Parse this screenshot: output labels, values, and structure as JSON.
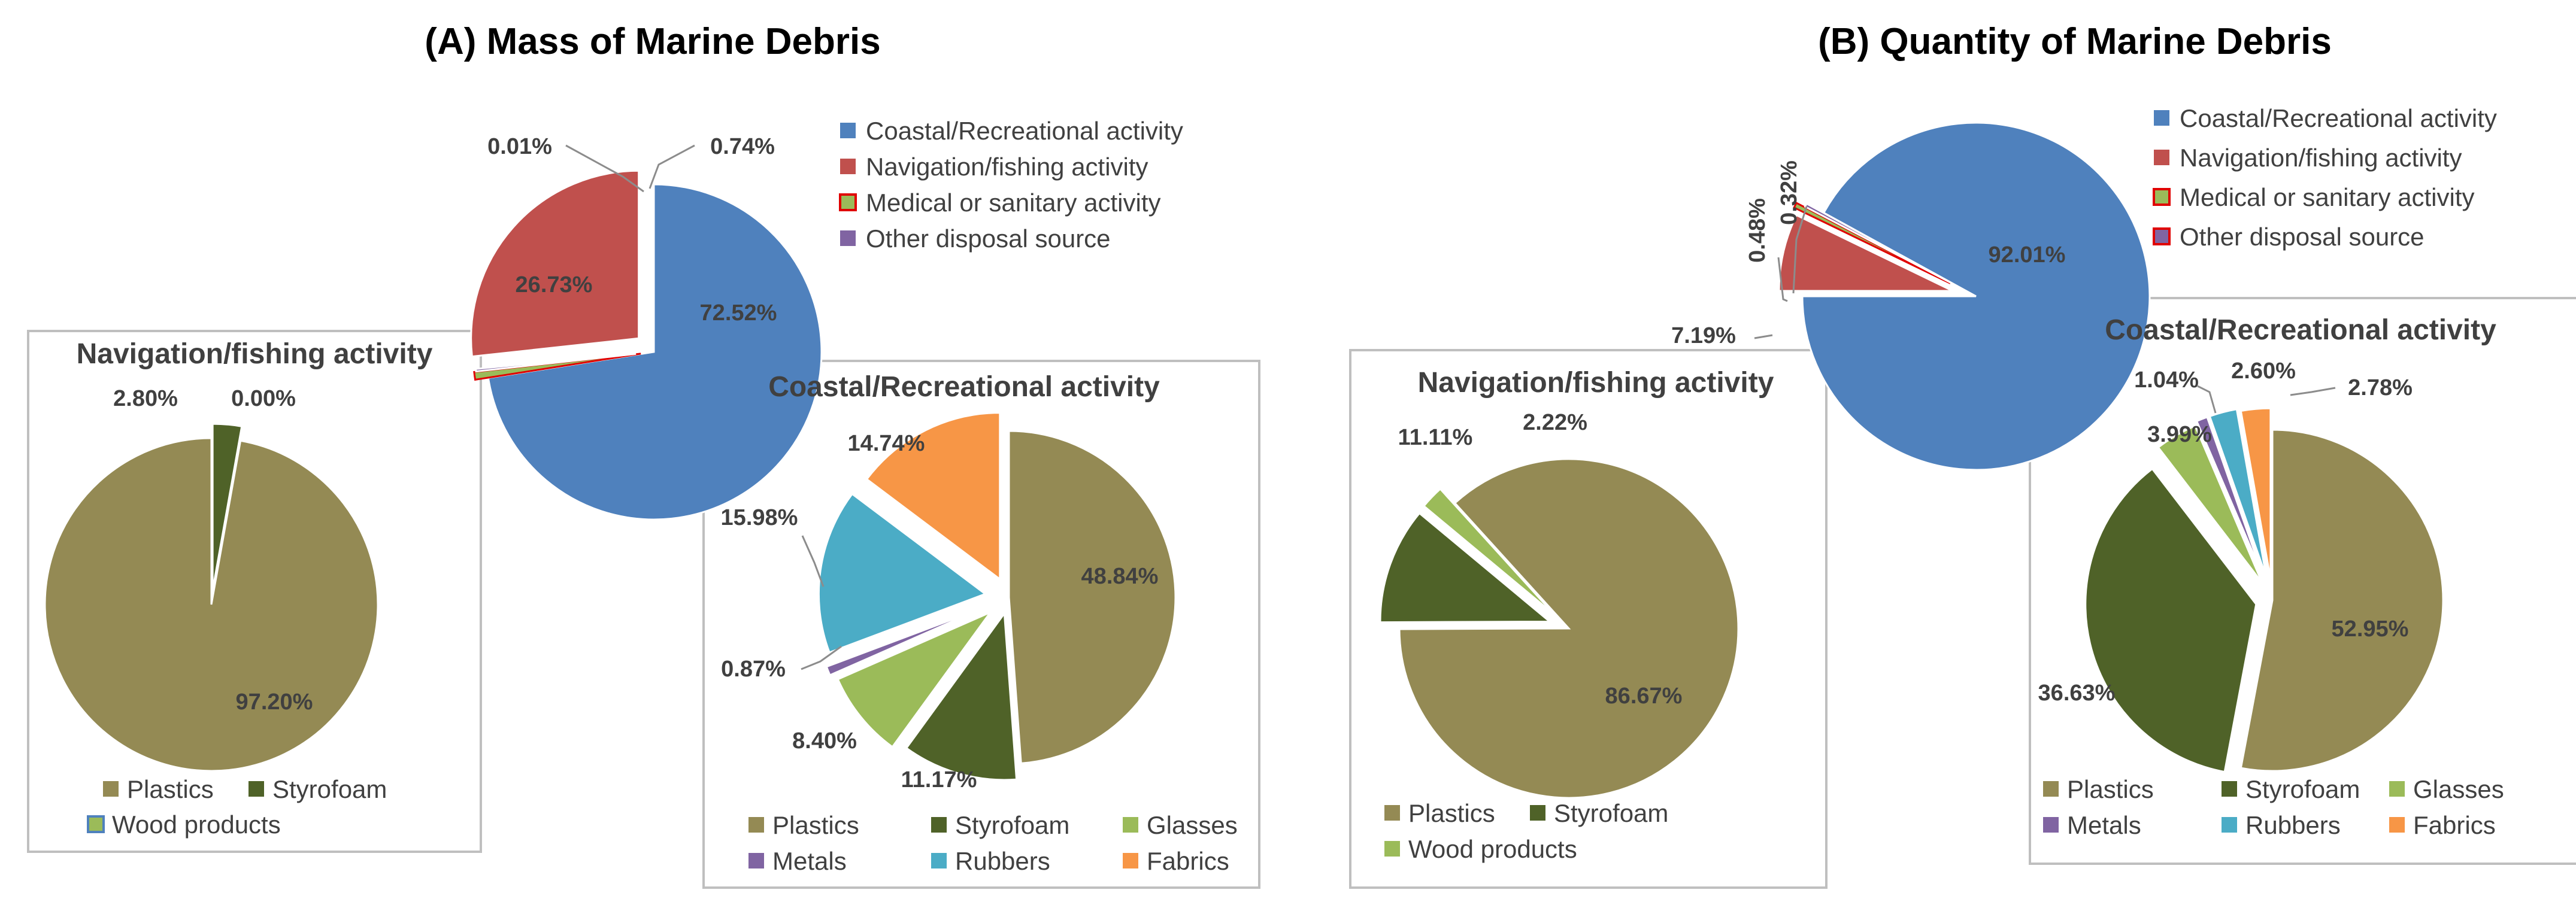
{
  "colors": {
    "coastal": "#4f81bd",
    "navigation": "#c0504d",
    "medical": "#9bbb59",
    "medical_border": "#e00000",
    "other": "#8064a2",
    "plastics": "#948a54",
    "styrofoam": "#4f6228",
    "glasses": "#9bbb59",
    "metals": "#8064a2",
    "rubbers": "#4bacc6",
    "fabrics": "#f79646",
    "wood": "#9bbb59",
    "wood_border": "#4f81bd"
  },
  "chart_data": [
    {
      "type": "pie",
      "panel": "A",
      "title": "(A) Mass of Marine Debris",
      "categories": [
        "Coastal/Recreational activity",
        "Navigation/fishing activity",
        "Medical or sanitary activity",
        "Other disposal source"
      ],
      "values": [
        72.52,
        26.73,
        0.74,
        0.01
      ],
      "labels": [
        "72.52%",
        "26.73%",
        "0.74%",
        "0.01%"
      ],
      "legend_position": "right",
      "sub_charts": [
        {
          "type": "pie",
          "title": "Navigation/fishing activity",
          "categories": [
            "Plastics",
            "Styrofoam",
            "Wood products"
          ],
          "values": [
            97.2,
            2.8,
            0.0
          ],
          "labels": [
            "97.20%",
            "2.80%",
            "0.00%"
          ],
          "legend_position": "bottom"
        },
        {
          "type": "pie",
          "title": "Coastal/Recreational activity",
          "categories": [
            "Plastics",
            "Styrofoam",
            "Glasses",
            "Metals",
            "Rubbers",
            "Fabrics"
          ],
          "values": [
            48.84,
            11.17,
            8.4,
            0.87,
            15.98,
            14.74
          ],
          "labels": [
            "48.84%",
            "11.17%",
            "8.40%",
            "0.87%",
            "15.98%",
            "14.74%"
          ],
          "legend_position": "bottom"
        }
      ]
    },
    {
      "type": "pie",
      "panel": "B",
      "title": "(B) Quantity of Marine Debris",
      "categories": [
        "Coastal/Recreational activity",
        "Navigation/fishing activity",
        "Medical or sanitary activity",
        "Other disposal source"
      ],
      "values": [
        92.01,
        7.19,
        0.48,
        0.32
      ],
      "labels": [
        "92.01%",
        "7.19%",
        "0.48%",
        "0.32%"
      ],
      "legend_position": "right",
      "sub_charts": [
        {
          "type": "pie",
          "title": "Navigation/fishing activity",
          "categories": [
            "Plastics",
            "Styrofoam",
            "Wood products"
          ],
          "values": [
            86.67,
            11.11,
            2.22
          ],
          "labels": [
            "86.67%",
            "11.11%",
            "2.22%"
          ],
          "legend_position": "bottom"
        },
        {
          "type": "pie",
          "title": "Coastal/Recreational activity",
          "categories": [
            "Plastics",
            "Styrofoam",
            "Glasses",
            "Metals",
            "Rubbers",
            "Fabrics"
          ],
          "values": [
            52.95,
            36.63,
            3.99,
            1.04,
            2.6,
            2.78
          ],
          "labels": [
            "52.95%",
            "36.63%",
            "3.99%",
            "1.04%",
            "2.60%",
            "2.78%"
          ],
          "legend_position": "bottom"
        }
      ]
    }
  ]
}
